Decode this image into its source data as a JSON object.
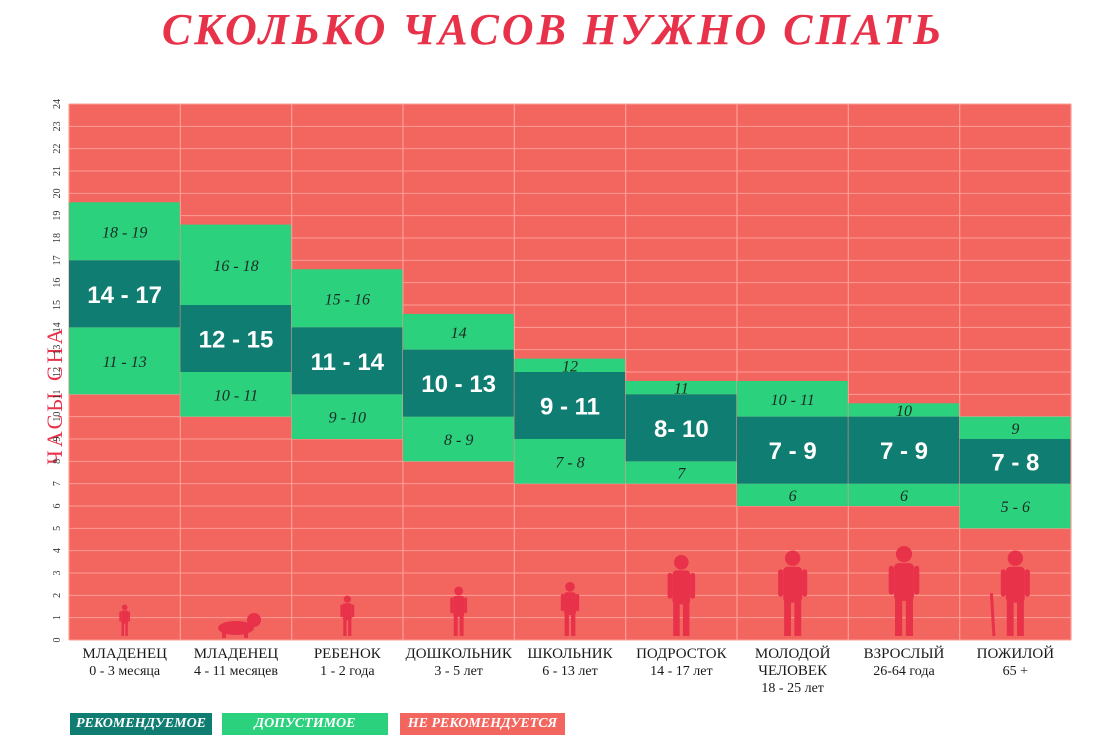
{
  "title": "СКОЛЬКО ЧАСОВ НУЖНО СПАТЬ",
  "colors": {
    "recommended": "#0f7d72",
    "acceptable": "#2bd17c",
    "not_recommended": "#f2665f",
    "title": "#e8324a",
    "silhouette": "#e8324a"
  },
  "legend": {
    "recommended": "РЕКОМЕНДУЕМОЕ",
    "acceptable": "ДОПУСТИМОЕ",
    "not_recommended": "НЕ РЕКОМЕНДУЕТСЯ"
  },
  "chart_data": {
    "type": "range-bar",
    "ylabel": "ЧАСЫ СНА",
    "ylim": [
      0,
      24
    ],
    "yticks": [
      "0",
      "1",
      "2",
      "3",
      "4",
      "5",
      "6",
      "7",
      "8",
      "9",
      "10",
      "11",
      "12",
      "13",
      "14",
      "15",
      "16",
      "17",
      "18",
      "19",
      "20",
      "21",
      "22",
      "23",
      "24"
    ],
    "grid": true,
    "legend_placement": "bottom-left",
    "categories": [
      {
        "title": [
          "МЛАДЕНЕЦ"
        ],
        "sub": "0 - 3 месяца",
        "icon": "baby-newborn-icon",
        "recommended": [
          14,
          17
        ],
        "rec_label": "14 - 17",
        "acc_low": [
          11,
          14
        ],
        "acc_low_label": "11 - 13",
        "acc_high": [
          17,
          19.6
        ],
        "acc_high_label": "18 - 19"
      },
      {
        "title": [
          "МЛАДЕНЕЦ"
        ],
        "sub": "4 - 11 месяцев",
        "icon": "crawling-baby-icon",
        "recommended": [
          12,
          15
        ],
        "rec_label": "12 - 15",
        "acc_low": [
          10,
          12
        ],
        "acc_low_label": "10 - 11",
        "acc_high": [
          15,
          18.6
        ],
        "acc_high_label": "16 - 18"
      },
      {
        "title": [
          "РЕБЕНОК"
        ],
        "sub": "1 - 2 года",
        "icon": "toddler-icon",
        "recommended": [
          11,
          14
        ],
        "rec_label": "11 - 14",
        "acc_low": [
          9,
          11
        ],
        "acc_low_label": "9 - 10",
        "acc_high": [
          14,
          16.6
        ],
        "acc_high_label": "15 - 16"
      },
      {
        "title": [
          "ДОШКОЛЬНИК"
        ],
        "sub": "3 - 5 лет",
        "icon": "preschooler-icon",
        "recommended": [
          10,
          13
        ],
        "rec_label": "10 - 13",
        "acc_low": [
          8,
          10
        ],
        "acc_low_label": "8 - 9",
        "acc_high": [
          13,
          14.6
        ],
        "acc_high_label": "14"
      },
      {
        "title": [
          "ШКОЛЬНИК"
        ],
        "sub": "6 - 13 лет",
        "icon": "schoolchild-icon",
        "recommended": [
          9,
          12
        ],
        "rec_label": "9 - 11",
        "acc_low": [
          7,
          9
        ],
        "acc_low_label": "7 - 8",
        "acc_high": [
          12,
          12.6
        ],
        "acc_high_label": "12"
      },
      {
        "title": [
          "ПОДРОСТОК"
        ],
        "sub": "14 - 17 лет",
        "icon": "teenager-icon",
        "recommended": [
          8,
          11
        ],
        "rec_label": "8- 10",
        "acc_low": [
          7,
          8
        ],
        "acc_low_label": "7",
        "acc_high": [
          11,
          11.6
        ],
        "acc_high_label": "11"
      },
      {
        "title": [
          "МОЛОДОЙ",
          "ЧЕЛОВЕК"
        ],
        "sub": "18 - 25 лет",
        "icon": "young-adult-icon",
        "recommended": [
          7,
          10
        ],
        "rec_label": "7 - 9",
        "acc_low": [
          6,
          7
        ],
        "acc_low_label": "6",
        "acc_high": [
          10,
          11.6
        ],
        "acc_high_label": "10 - 11"
      },
      {
        "title": [
          "ВЗРОСЛЫЙ"
        ],
        "sub": "26-64 года",
        "icon": "adult-icon",
        "recommended": [
          7,
          10
        ],
        "rec_label": "7 - 9",
        "acc_low": [
          6,
          7
        ],
        "acc_low_label": "6",
        "acc_high": [
          10,
          10.6
        ],
        "acc_high_label": "10"
      },
      {
        "title": [
          "ПОЖИЛОЙ"
        ],
        "sub": "65 +",
        "icon": "elderly-icon",
        "recommended": [
          7,
          9
        ],
        "rec_label": "7 - 8",
        "acc_low": [
          5,
          7
        ],
        "acc_low_label": "5 - 6",
        "acc_high": [
          9,
          10
        ],
        "acc_high_label": "9"
      }
    ]
  }
}
